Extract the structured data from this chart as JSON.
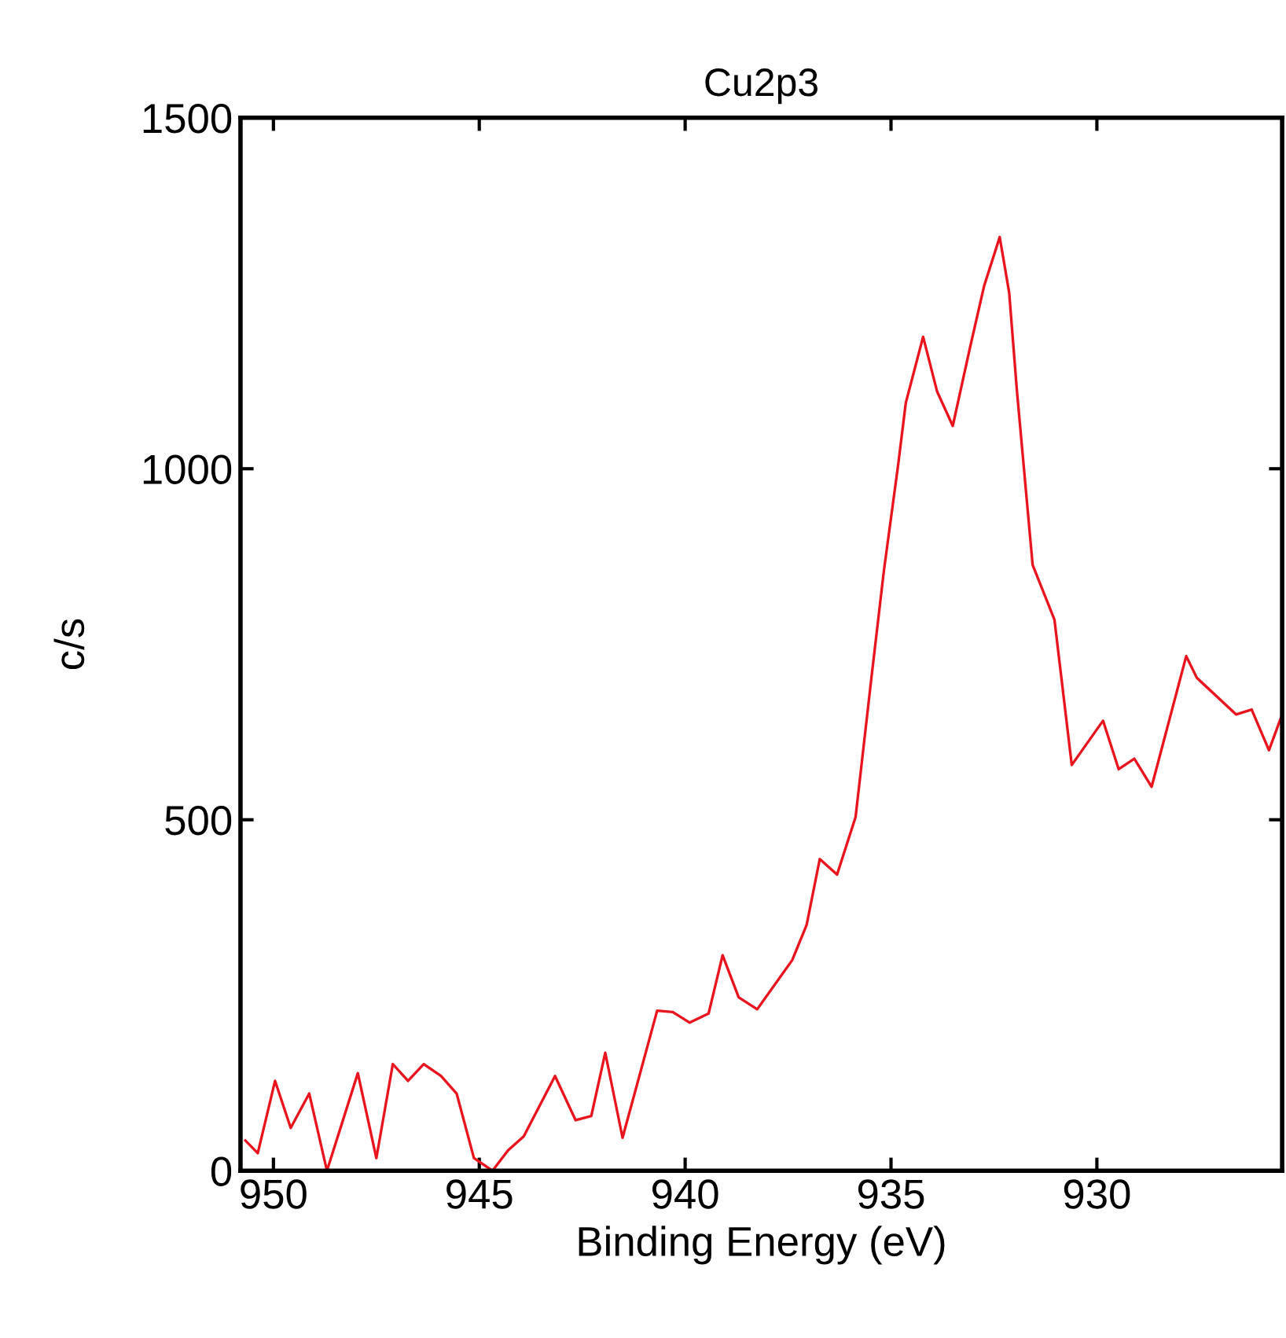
{
  "chart_data": {
    "type": "line",
    "title": "Cu2p3",
    "xlabel": "Binding Energy (eV)",
    "ylabel": "c/s",
    "x": [
      950.68,
      950.38,
      949.96,
      949.58,
      949.13,
      948.7,
      947.95,
      947.5,
      947.1,
      946.73,
      946.35,
      945.93,
      945.55,
      945.13,
      944.68,
      944.3,
      943.92,
      943.16,
      942.66,
      942.28,
      941.94,
      941.52,
      940.68,
      940.3,
      939.89,
      939.43,
      939.09,
      938.7,
      938.25,
      937.4,
      937.05,
      936.73,
      936.31,
      935.86,
      935.48,
      935.17,
      934.83,
      934.64,
      934.22,
      933.88,
      933.5,
      933.08,
      932.74,
      932.36,
      932.13,
      931.94,
      931.56,
      931.03,
      930.61,
      929.96,
      929.85,
      929.47,
      929.09,
      928.67,
      927.83,
      927.57,
      926.62,
      926.24,
      925.82,
      925.5
    ],
    "series": [
      {
        "color": "#e8141e",
        "values": [
          43,
          25,
          128,
          61,
          110,
          0,
          139,
          18,
          152,
          128,
          152,
          135,
          110,
          18,
          0,
          29,
          49,
          135,
          72,
          78,
          168,
          47,
          228,
          226,
          211,
          224,
          307,
          247,
          230,
          300,
          350,
          444,
          422,
          504,
          700,
          856,
          1004,
          1094,
          1188,
          1110,
          1061,
          1173,
          1260,
          1330,
          1251,
          1110,
          863,
          785,
          578,
          632,
          641,
          572,
          587,
          547,
          733,
          702,
          650,
          657,
          599,
          650
        ]
      }
    ],
    "xlim": [
      950.8,
      925.5
    ],
    "ylim": [
      0,
      1500
    ],
    "xticks": [
      950,
      945,
      940,
      935,
      930
    ],
    "yticks": [
      0,
      500,
      1000,
      1500
    ],
    "grid": false,
    "marker": "none",
    "line_style": "solid"
  }
}
